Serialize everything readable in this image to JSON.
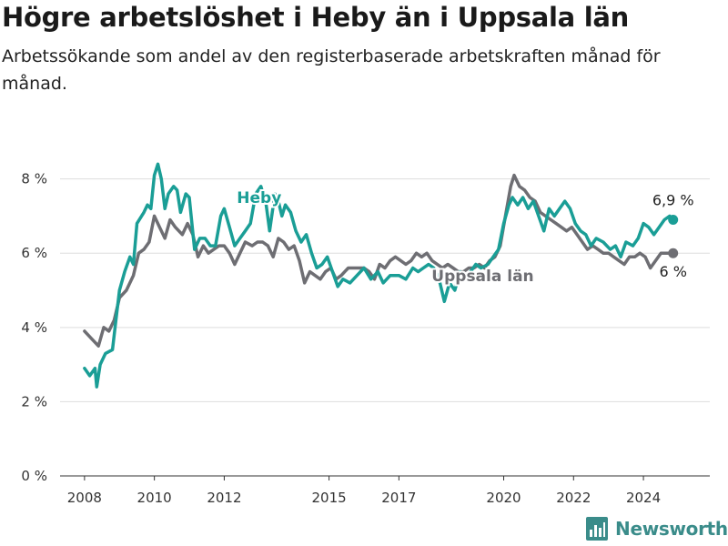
{
  "header": {
    "title": "Högre arbetslöshet i Heby än i Uppsala län",
    "subtitle": "Arbetssökande som andel av den registerbaserade arbetskraften månad för månad."
  },
  "brand": {
    "name": "Newsworthy"
  },
  "colors": {
    "heby": "#1a9e96",
    "uppsala": "#6e6e73",
    "accent": "#3a8c8a"
  },
  "chart_data": {
    "type": "line",
    "ylim": [
      0,
      8.8
    ],
    "xlim": [
      2007.3,
      2025.9
    ],
    "y_ticks": [
      0,
      2,
      4,
      6,
      8
    ],
    "y_tick_labels": [
      "0 %",
      "2 %",
      "4 %",
      "6 %",
      "8 %"
    ],
    "x_ticks": [
      2008,
      2010,
      2012,
      2015,
      2017,
      2020,
      2022,
      2024
    ],
    "x_tick_labels": [
      "2008",
      "2010",
      "2012",
      "2015",
      "2017",
      "2020",
      "2022",
      "2024"
    ],
    "grid": "horizontal",
    "series": [
      {
        "name": "Heby",
        "color": "#1a9e96",
        "end_label": "6,9 %",
        "points": [
          [
            2008.0,
            2.9
          ],
          [
            2008.15,
            2.7
          ],
          [
            2008.3,
            2.9
          ],
          [
            2008.35,
            2.4
          ],
          [
            2008.45,
            3.0
          ],
          [
            2008.6,
            3.3
          ],
          [
            2008.8,
            3.4
          ],
          [
            2008.9,
            4.2
          ],
          [
            2009.0,
            5.0
          ],
          [
            2009.15,
            5.5
          ],
          [
            2009.3,
            5.9
          ],
          [
            2009.4,
            5.7
          ],
          [
            2009.5,
            6.8
          ],
          [
            2009.7,
            7.1
          ],
          [
            2009.8,
            7.3
          ],
          [
            2009.9,
            7.2
          ],
          [
            2010.0,
            8.1
          ],
          [
            2010.1,
            8.4
          ],
          [
            2010.2,
            8.0
          ],
          [
            2010.3,
            7.2
          ],
          [
            2010.4,
            7.6
          ],
          [
            2010.55,
            7.8
          ],
          [
            2010.65,
            7.7
          ],
          [
            2010.75,
            7.1
          ],
          [
            2010.9,
            7.6
          ],
          [
            2011.0,
            7.5
          ],
          [
            2011.15,
            6.1
          ],
          [
            2011.3,
            6.4
          ],
          [
            2011.45,
            6.4
          ],
          [
            2011.6,
            6.2
          ],
          [
            2011.75,
            6.2
          ],
          [
            2011.9,
            7.0
          ],
          [
            2012.0,
            7.2
          ],
          [
            2012.15,
            6.7
          ],
          [
            2012.3,
            6.2
          ],
          [
            2012.45,
            6.4
          ],
          [
            2012.6,
            6.6
          ],
          [
            2012.75,
            6.8
          ],
          [
            2012.9,
            7.6
          ],
          [
            2013.05,
            7.8
          ],
          [
            2013.2,
            7.3
          ],
          [
            2013.3,
            6.6
          ],
          [
            2013.45,
            7.6
          ],
          [
            2013.55,
            7.4
          ],
          [
            2013.65,
            7.0
          ],
          [
            2013.75,
            7.3
          ],
          [
            2013.9,
            7.1
          ],
          [
            2014.05,
            6.6
          ],
          [
            2014.2,
            6.3
          ],
          [
            2014.35,
            6.5
          ],
          [
            2014.5,
            6.0
          ],
          [
            2014.65,
            5.6
          ],
          [
            2014.8,
            5.7
          ],
          [
            2014.95,
            5.9
          ],
          [
            2015.1,
            5.5
          ],
          [
            2015.25,
            5.1
          ],
          [
            2015.4,
            5.3
          ],
          [
            2015.6,
            5.2
          ],
          [
            2015.8,
            5.4
          ],
          [
            2016.0,
            5.6
          ],
          [
            2016.2,
            5.3
          ],
          [
            2016.4,
            5.5
          ],
          [
            2016.55,
            5.2
          ],
          [
            2016.75,
            5.4
          ],
          [
            2017.0,
            5.4
          ],
          [
            2017.2,
            5.3
          ],
          [
            2017.4,
            5.6
          ],
          [
            2017.55,
            5.5
          ],
          [
            2017.7,
            5.6
          ],
          [
            2017.85,
            5.7
          ],
          [
            2018.0,
            5.6
          ],
          [
            2018.15,
            5.3
          ],
          [
            2018.3,
            4.7
          ],
          [
            2018.45,
            5.2
          ],
          [
            2018.6,
            5.0
          ],
          [
            2018.75,
            5.5
          ],
          [
            2018.9,
            5.3
          ],
          [
            2019.05,
            5.5
          ],
          [
            2019.2,
            5.7
          ],
          [
            2019.35,
            5.6
          ],
          [
            2019.55,
            5.7
          ],
          [
            2019.7,
            5.9
          ],
          [
            2019.85,
            6.1
          ],
          [
            2020.0,
            6.8
          ],
          [
            2020.15,
            7.3
          ],
          [
            2020.25,
            7.5
          ],
          [
            2020.4,
            7.3
          ],
          [
            2020.55,
            7.5
          ],
          [
            2020.7,
            7.2
          ],
          [
            2020.85,
            7.4
          ],
          [
            2021.0,
            7.0
          ],
          [
            2021.15,
            6.6
          ],
          [
            2021.3,
            7.2
          ],
          [
            2021.45,
            7.0
          ],
          [
            2021.6,
            7.2
          ],
          [
            2021.75,
            7.4
          ],
          [
            2021.9,
            7.2
          ],
          [
            2022.05,
            6.8
          ],
          [
            2022.2,
            6.6
          ],
          [
            2022.35,
            6.5
          ],
          [
            2022.5,
            6.2
          ],
          [
            2022.65,
            6.4
          ],
          [
            2022.85,
            6.3
          ],
          [
            2023.05,
            6.1
          ],
          [
            2023.2,
            6.2
          ],
          [
            2023.35,
            5.9
          ],
          [
            2023.5,
            6.3
          ],
          [
            2023.7,
            6.2
          ],
          [
            2023.85,
            6.4
          ],
          [
            2024.0,
            6.8
          ],
          [
            2024.15,
            6.7
          ],
          [
            2024.3,
            6.5
          ],
          [
            2024.45,
            6.7
          ],
          [
            2024.6,
            6.9
          ],
          [
            2024.75,
            7.0
          ],
          [
            2024.85,
            6.9
          ]
        ]
      },
      {
        "name": "Uppsala län",
        "color": "#6e6e73",
        "end_label": "6 %",
        "points": [
          [
            2008.0,
            3.9
          ],
          [
            2008.2,
            3.7
          ],
          [
            2008.4,
            3.5
          ],
          [
            2008.55,
            4.0
          ],
          [
            2008.7,
            3.9
          ],
          [
            2008.85,
            4.2
          ],
          [
            2009.0,
            4.8
          ],
          [
            2009.2,
            5.0
          ],
          [
            2009.4,
            5.4
          ],
          [
            2009.55,
            6.0
          ],
          [
            2009.7,
            6.1
          ],
          [
            2009.85,
            6.3
          ],
          [
            2010.0,
            7.0
          ],
          [
            2010.15,
            6.7
          ],
          [
            2010.3,
            6.4
          ],
          [
            2010.45,
            6.9
          ],
          [
            2010.6,
            6.7
          ],
          [
            2010.8,
            6.5
          ],
          [
            2010.95,
            6.8
          ],
          [
            2011.1,
            6.5
          ],
          [
            2011.25,
            5.9
          ],
          [
            2011.4,
            6.2
          ],
          [
            2011.55,
            6.0
          ],
          [
            2011.7,
            6.1
          ],
          [
            2011.85,
            6.2
          ],
          [
            2012.0,
            6.2
          ],
          [
            2012.15,
            6.0
          ],
          [
            2012.3,
            5.7
          ],
          [
            2012.45,
            6.0
          ],
          [
            2012.6,
            6.3
          ],
          [
            2012.8,
            6.2
          ],
          [
            2012.95,
            6.3
          ],
          [
            2013.1,
            6.3
          ],
          [
            2013.25,
            6.2
          ],
          [
            2013.4,
            5.9
          ],
          [
            2013.55,
            6.4
          ],
          [
            2013.7,
            6.3
          ],
          [
            2013.85,
            6.1
          ],
          [
            2014.0,
            6.2
          ],
          [
            2014.15,
            5.8
          ],
          [
            2014.3,
            5.2
          ],
          [
            2014.45,
            5.5
          ],
          [
            2014.6,
            5.4
          ],
          [
            2014.75,
            5.3
          ],
          [
            2014.9,
            5.5
          ],
          [
            2015.05,
            5.6
          ],
          [
            2015.2,
            5.3
          ],
          [
            2015.35,
            5.4
          ],
          [
            2015.55,
            5.6
          ],
          [
            2015.8,
            5.6
          ],
          [
            2016.0,
            5.6
          ],
          [
            2016.15,
            5.5
          ],
          [
            2016.3,
            5.3
          ],
          [
            2016.45,
            5.7
          ],
          [
            2016.6,
            5.6
          ],
          [
            2016.75,
            5.8
          ],
          [
            2016.9,
            5.9
          ],
          [
            2017.05,
            5.8
          ],
          [
            2017.2,
            5.7
          ],
          [
            2017.35,
            5.8
          ],
          [
            2017.5,
            6.0
          ],
          [
            2017.65,
            5.9
          ],
          [
            2017.8,
            6.0
          ],
          [
            2017.95,
            5.8
          ],
          [
            2018.1,
            5.7
          ],
          [
            2018.25,
            5.6
          ],
          [
            2018.4,
            5.7
          ],
          [
            2018.55,
            5.6
          ],
          [
            2018.7,
            5.5
          ],
          [
            2018.85,
            5.5
          ],
          [
            2019.0,
            5.6
          ],
          [
            2019.15,
            5.6
          ],
          [
            2019.3,
            5.7
          ],
          [
            2019.45,
            5.6
          ],
          [
            2019.6,
            5.8
          ],
          [
            2019.75,
            5.9
          ],
          [
            2019.9,
            6.2
          ],
          [
            2020.05,
            7.0
          ],
          [
            2020.2,
            7.8
          ],
          [
            2020.3,
            8.1
          ],
          [
            2020.45,
            7.8
          ],
          [
            2020.6,
            7.7
          ],
          [
            2020.75,
            7.5
          ],
          [
            2020.9,
            7.4
          ],
          [
            2021.05,
            7.1
          ],
          [
            2021.2,
            7.0
          ],
          [
            2021.35,
            6.9
          ],
          [
            2021.5,
            6.8
          ],
          [
            2021.65,
            6.7
          ],
          [
            2021.8,
            6.6
          ],
          [
            2021.95,
            6.7
          ],
          [
            2022.1,
            6.5
          ],
          [
            2022.25,
            6.3
          ],
          [
            2022.4,
            6.1
          ],
          [
            2022.55,
            6.2
          ],
          [
            2022.7,
            6.1
          ],
          [
            2022.85,
            6.0
          ],
          [
            2023.0,
            6.0
          ],
          [
            2023.15,
            5.9
          ],
          [
            2023.3,
            5.8
          ],
          [
            2023.45,
            5.7
          ],
          [
            2023.6,
            5.9
          ],
          [
            2023.75,
            5.9
          ],
          [
            2023.9,
            6.0
          ],
          [
            2024.05,
            5.9
          ],
          [
            2024.2,
            5.6
          ],
          [
            2024.35,
            5.8
          ],
          [
            2024.5,
            6.0
          ],
          [
            2024.65,
            6.0
          ],
          [
            2024.85,
            6.0
          ]
        ]
      }
    ],
    "annotations": [
      {
        "text": "Heby",
        "series": "Heby",
        "x": 2013.0,
        "y": 7.35
      },
      {
        "text": "Uppsala län",
        "series": "Uppsala län",
        "x": 2019.4,
        "y": 5.25
      }
    ]
  }
}
